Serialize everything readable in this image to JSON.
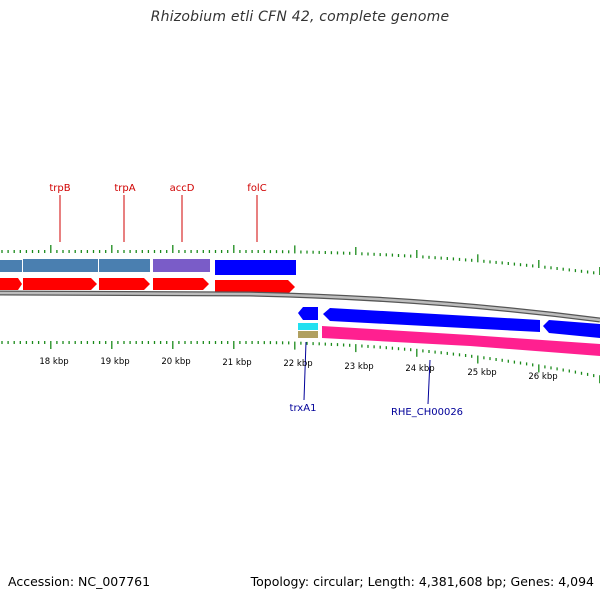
{
  "title": "Rhizobium etli CFN 42, complete genome",
  "footer": {
    "accession_label": "Accession: NC_007761",
    "stats_label": "Topology: circular; Length: 4,381,608 bp; Genes: 4,094"
  },
  "colors": {
    "tick_green": "#1a8a1a",
    "backbone": "#8a8a8a",
    "cds_red": "#ff0000",
    "gene_steel": "#4a7fb0",
    "gene_purple": "#7a5cc8",
    "gene_blue": "#0000ff",
    "gene_cyan": "#22e0f0",
    "gene_tan": "#b0a060",
    "rrna_pink": "#ff2090",
    "label_red": "#d00000",
    "label_navy": "#000099"
  },
  "scale": {
    "kbp_labels": [
      "18 kbp",
      "19 kbp",
      "20 kbp",
      "21 kbp",
      "22 kbp",
      "23 kbp",
      "24 kbp",
      "25 kbp",
      "26 kbp"
    ]
  },
  "gene_labels_top": [
    "trpB",
    "trpA",
    "accD",
    "folC"
  ],
  "gene_labels_bottom": [
    "trxA1",
    "RHE_CH00026"
  ]
}
